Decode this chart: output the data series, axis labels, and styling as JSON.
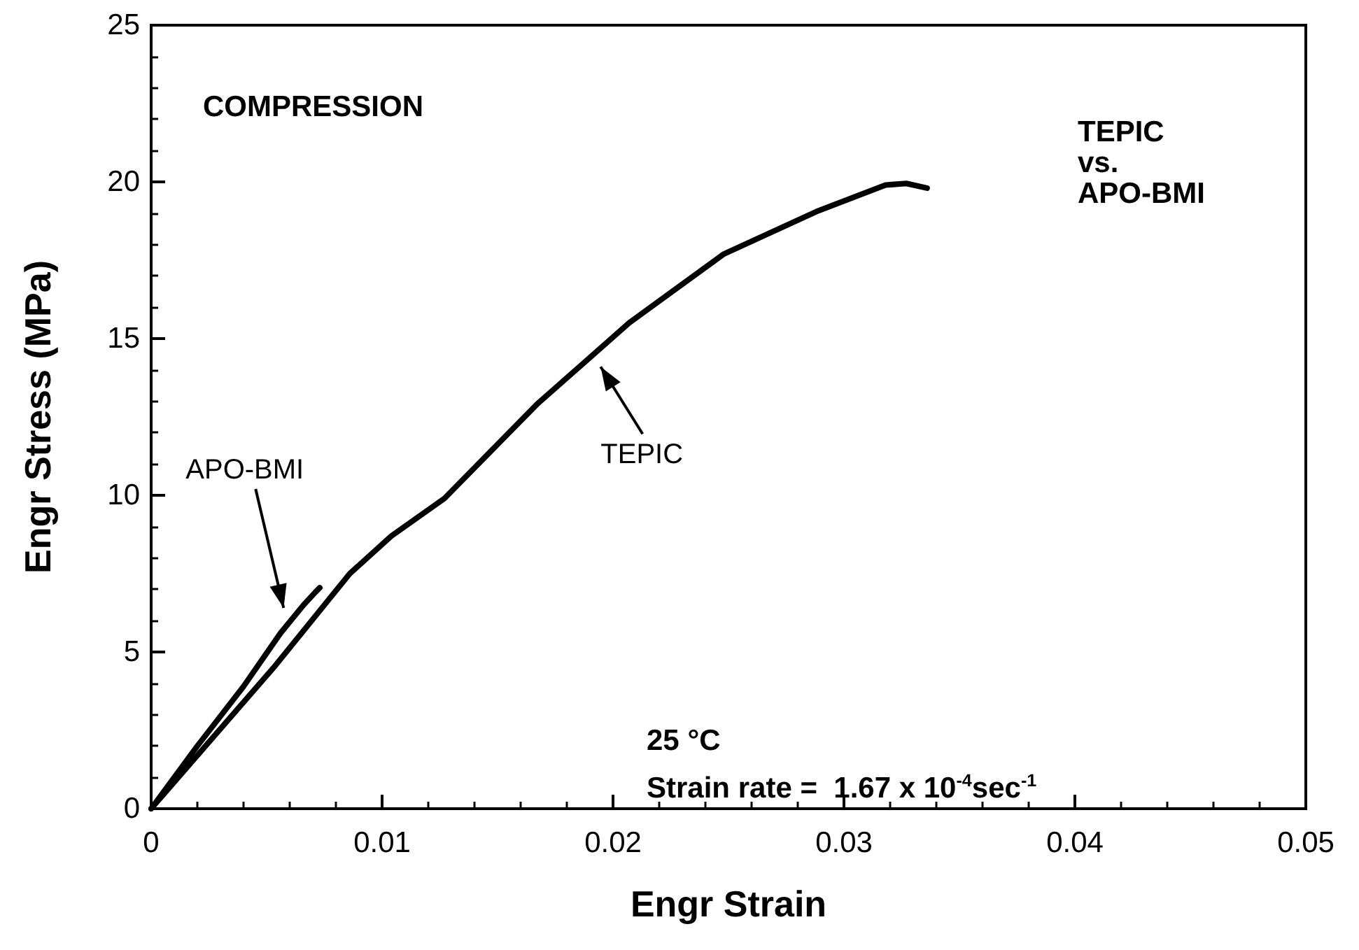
{
  "chart_data": {
    "type": "line",
    "xlabel": "Engr Strain",
    "ylabel": "Engr Stress (MPa)",
    "annotations": [
      "COMPRESSION",
      "TEPIC\nvs.\nAPO-BMI",
      "25 °C",
      "Strain rate =  1.67 x 10$^{-4}$sec$^{-1}$"
    ],
    "series": [
      {
        "name": "TEPIC",
        "color": "#000000",
        "x": [
          0,
          0.002,
          0.0053,
          0.0086,
          0.0104,
          0.0127,
          0.0167,
          0.0207,
          0.0248,
          0.0288,
          0.0318,
          0.0327,
          0.0336
        ],
        "values": [
          0,
          1.7,
          4.5,
          7.5,
          8.7,
          9.9,
          12.9,
          15.5,
          17.7,
          19.05,
          19.9,
          19.95,
          19.8
        ]
      },
      {
        "name": "APO-BMI",
        "color": "#000000",
        "x": [
          0,
          0.002,
          0.004,
          0.0056,
          0.0066,
          0.0071,
          0.0073
        ],
        "values": [
          0,
          2,
          3.9,
          5.6,
          6.5,
          6.9,
          7.05
        ]
      }
    ],
    "xlim": [
      0,
      0.05
    ],
    "xticks": [
      0,
      0.01,
      0.02,
      0.03,
      0.04,
      0.05
    ],
    "ylim": [
      0,
      25
    ],
    "yticks": [
      0,
      5,
      10,
      15,
      20,
      25
    ],
    "grid": false,
    "marker": "none",
    "line_style": "solid"
  }
}
